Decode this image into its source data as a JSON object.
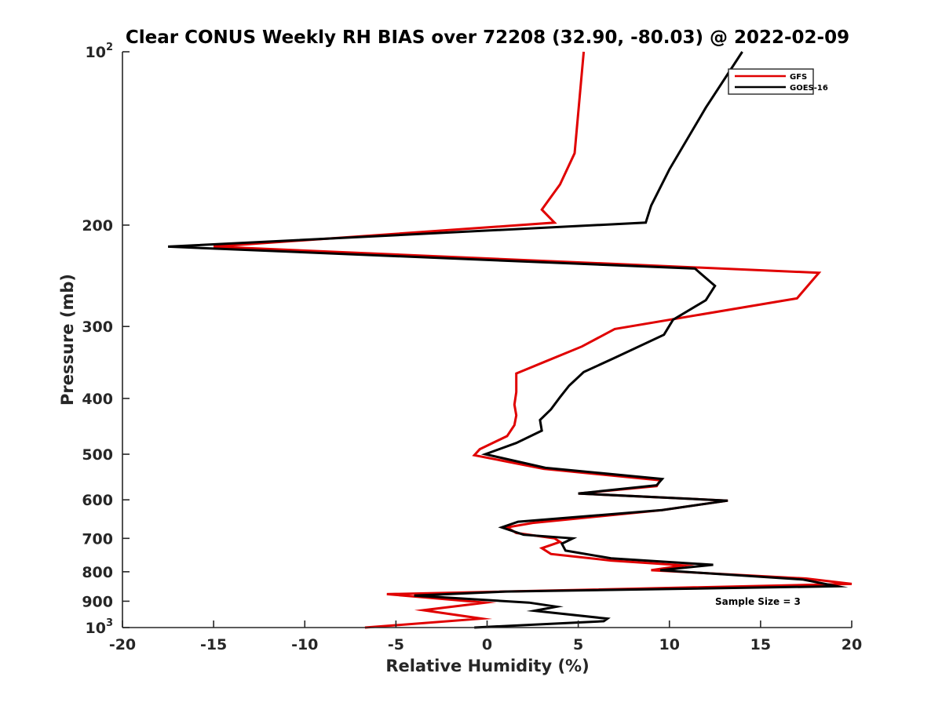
{
  "chart_data": {
    "type": "line",
    "title": "Clear CONUS Weekly RH BIAS over 72208 (32.90, -80.03) @ 2022-02-09",
    "xlabel": "Relative Humidity (%)",
    "ylabel": "Pressure (mb)",
    "xlim": [
      -20,
      20
    ],
    "ylim": [
      100,
      1000
    ],
    "y_scale": "log",
    "y_reversed": true,
    "grid": false,
    "legend_placement": "top-right",
    "x_ticks": [
      -20,
      -15,
      -10,
      -5,
      0,
      5,
      10,
      15,
      20
    ],
    "x_tick_labels": [
      "-20",
      "-15",
      "-10",
      "-5",
      "0",
      "5",
      "10",
      "15",
      "20"
    ],
    "y_ticks": [
      100,
      200,
      300,
      400,
      500,
      600,
      700,
      800,
      900,
      1000
    ],
    "y_tick_labels": [
      {
        "base": "10",
        "exp": "2"
      },
      {
        "base": "200",
        "exp": ""
      },
      {
        "base": "300",
        "exp": ""
      },
      {
        "base": "400",
        "exp": ""
      },
      {
        "base": "500",
        "exp": ""
      },
      {
        "base": "600",
        "exp": ""
      },
      {
        "base": "700",
        "exp": ""
      },
      {
        "base": "800",
        "exp": ""
      },
      {
        "base": "900",
        "exp": ""
      },
      {
        "base": "10",
        "exp": "3"
      }
    ],
    "annotation": "Sample Size = 3",
    "series": [
      {
        "name": "GFS",
        "color": "#e00000",
        "points": [
          [
            5.3,
            100
          ],
          [
            4.8,
            150
          ],
          [
            4.0,
            170
          ],
          [
            3.0,
            188
          ],
          [
            3.7,
            198
          ],
          [
            -15.0,
            218
          ],
          [
            18.2,
            242
          ],
          [
            17.0,
            268
          ],
          [
            7.0,
            303
          ],
          [
            5.2,
            325
          ],
          [
            3.2,
            345
          ],
          [
            1.6,
            362
          ],
          [
            1.6,
            390
          ],
          [
            1.5,
            410
          ],
          [
            1.6,
            428
          ],
          [
            1.5,
            445
          ],
          [
            1.1,
            465
          ],
          [
            -0.4,
            490
          ],
          [
            -0.7,
            502
          ],
          [
            3.1,
            530
          ],
          [
            9.5,
            555
          ],
          [
            9.3,
            568
          ],
          [
            5.0,
            585
          ],
          [
            13.2,
            602
          ],
          [
            9.6,
            625
          ],
          [
            2.5,
            658
          ],
          [
            1.1,
            670
          ],
          [
            1.6,
            685
          ],
          [
            3.7,
            700
          ],
          [
            4.0,
            710
          ],
          [
            3.0,
            728
          ],
          [
            3.5,
            745
          ],
          [
            6.8,
            765
          ],
          [
            10.8,
            780
          ],
          [
            9.0,
            795
          ],
          [
            17.5,
            822
          ],
          [
            20.0,
            840
          ],
          [
            -5.5,
            875
          ],
          [
            -0.1,
            905
          ],
          [
            -3.5,
            933
          ],
          [
            -0.3,
            965
          ],
          [
            -6.7,
            1000
          ]
        ]
      },
      {
        "name": "GOES-16",
        "color": "#000000",
        "points": [
          [
            14.0,
            100
          ],
          [
            12.0,
            125
          ],
          [
            10.0,
            160
          ],
          [
            9.0,
            185
          ],
          [
            8.7,
            198
          ],
          [
            -17.5,
            218
          ],
          [
            11.4,
            238
          ],
          [
            12.5,
            255
          ],
          [
            12.0,
            270
          ],
          [
            10.2,
            292
          ],
          [
            9.7,
            310
          ],
          [
            7.0,
            340
          ],
          [
            5.3,
            360
          ],
          [
            4.5,
            380
          ],
          [
            4.0,
            398
          ],
          [
            3.5,
            418
          ],
          [
            2.9,
            436
          ],
          [
            3.0,
            455
          ],
          [
            1.6,
            478
          ],
          [
            -0.1,
            500
          ],
          [
            3.2,
            528
          ],
          [
            9.6,
            552
          ],
          [
            9.3,
            566
          ],
          [
            5.0,
            585
          ],
          [
            13.2,
            602
          ],
          [
            9.6,
            625
          ],
          [
            1.7,
            655
          ],
          [
            0.8,
            670
          ],
          [
            2.0,
            690
          ],
          [
            4.7,
            700
          ],
          [
            4.1,
            715
          ],
          [
            4.3,
            735
          ],
          [
            6.8,
            758
          ],
          [
            12.4,
            778
          ],
          [
            9.5,
            795
          ],
          [
            17.3,
            825
          ],
          [
            19.2,
            848
          ],
          [
            1.0,
            866
          ],
          [
            -4.0,
            880
          ],
          [
            2.3,
            905
          ],
          [
            3.8,
            920
          ],
          [
            2.6,
            935
          ],
          [
            6.6,
            965
          ],
          [
            6.4,
            975
          ],
          [
            -0.7,
            1000
          ]
        ]
      }
    ]
  }
}
